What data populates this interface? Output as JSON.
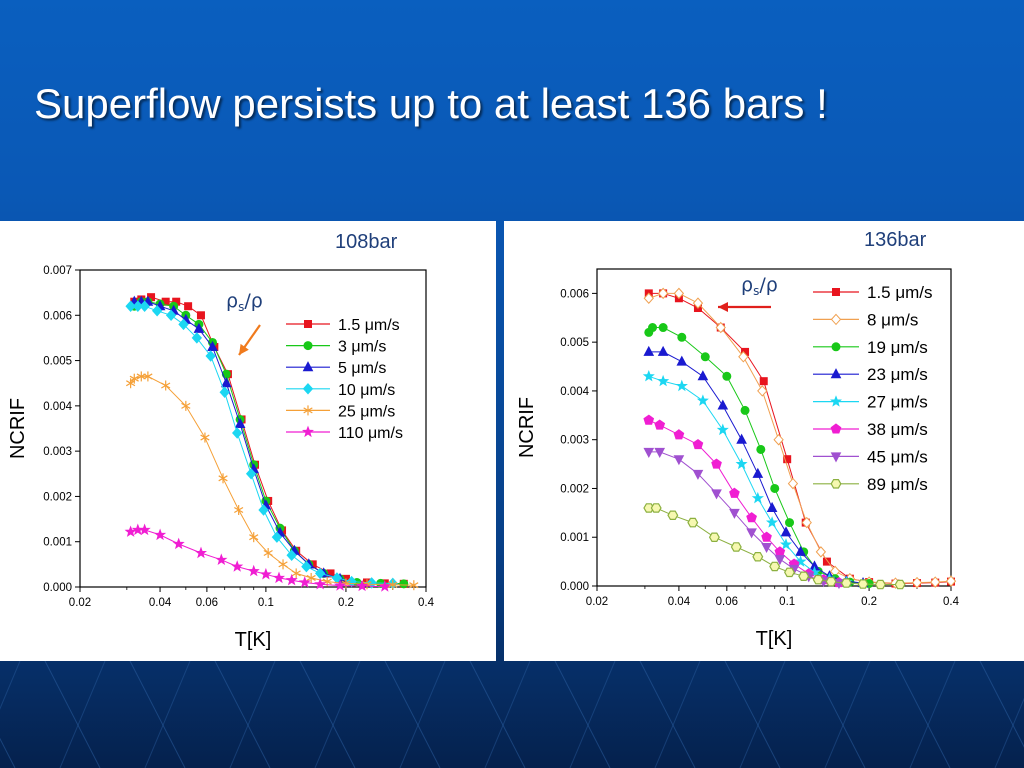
{
  "slide": {
    "title": "Superflow persists up to at least 136 bars !"
  },
  "colors": {
    "arrow_left": "#f07a1c",
    "arrow_right": "#e0201c"
  },
  "chart_data": [
    {
      "type": "scatter",
      "pressure_label": "108bar",
      "annotation": {
        "rho": "ρ",
        "sub": "s",
        "tail": "/ρ"
      },
      "xlabel": "T[K]",
      "ylabel": "NCRIF",
      "x_scale": "log",
      "xlim": [
        0.02,
        0.4
      ],
      "ylim": [
        0,
        0.007
      ],
      "x_ticks": [
        0.02,
        0.04,
        0.06,
        0.1,
        0.2,
        0.4
      ],
      "x_tick_labels": [
        "0.02",
        "0.04",
        "0.06",
        "0.1",
        "0.2",
        "0.4"
      ],
      "y_ticks": [
        0,
        0.001,
        0.002,
        0.003,
        0.004,
        0.005,
        0.006,
        0.007
      ],
      "y_tick_labels": [
        "0.000",
        "0.001",
        "0.002",
        "0.003",
        "0.004",
        "0.005",
        "0.006",
        "0.007"
      ],
      "legend": "top-right",
      "series": [
        {
          "name": "1.5 μm/s",
          "color": "#e8141e",
          "marker": "square",
          "filled": true,
          "x": [
            0.032,
            0.034,
            0.037,
            0.042,
            0.046,
            0.051,
            0.057,
            0.064,
            0.072,
            0.081,
            0.091,
            0.102,
            0.115,
            0.13,
            0.15,
            0.175,
            0.2,
            0.24,
            0.28,
            0.33
          ],
          "y": [
            0.0063,
            0.00635,
            0.0064,
            0.0063,
            0.0063,
            0.0062,
            0.006,
            0.0053,
            0.0047,
            0.0037,
            0.0027,
            0.0019,
            0.00125,
            0.0008,
            0.0005,
            0.0003,
            0.00018,
            0.0001,
            8e-05,
            7e-05
          ]
        },
        {
          "name": "3 μm/s",
          "color": "#18c818",
          "marker": "circle",
          "filled": true,
          "x": [
            0.032,
            0.034,
            0.036,
            0.04,
            0.045,
            0.05,
            0.056,
            0.063,
            0.071,
            0.08,
            0.09,
            0.1,
            0.113,
            0.128,
            0.145,
            0.165,
            0.19,
            0.22,
            0.27,
            0.33
          ],
          "y": [
            0.0062,
            0.0063,
            0.0063,
            0.00625,
            0.0062,
            0.006,
            0.0058,
            0.0054,
            0.0047,
            0.0037,
            0.0027,
            0.0019,
            0.0013,
            0.0008,
            0.0005,
            0.0003,
            0.00018,
            0.0001,
            8e-05,
            7e-05
          ]
        },
        {
          "name": "5 μm/s",
          "color": "#1a1ad0",
          "marker": "triangle-up",
          "filled": true,
          "x": [
            0.032,
            0.034,
            0.036,
            0.04,
            0.045,
            0.05,
            0.056,
            0.063,
            0.071,
            0.08,
            0.09,
            0.1,
            0.113,
            0.128,
            0.145,
            0.165,
            0.19
          ],
          "y": [
            0.0063,
            0.0063,
            0.0063,
            0.0062,
            0.0061,
            0.0059,
            0.0057,
            0.0053,
            0.0045,
            0.0036,
            0.0026,
            0.0018,
            0.0012,
            0.0008,
            0.0005,
            0.0003,
            0.00018
          ]
        },
        {
          "name": "10 μm/s",
          "color": "#1cd7f2",
          "marker": "diamond",
          "filled": true,
          "x": [
            0.031,
            0.033,
            0.035,
            0.039,
            0.044,
            0.049,
            0.055,
            0.062,
            0.07,
            0.078,
            0.088,
            0.098,
            0.11,
            0.125,
            0.142,
            0.16,
            0.185,
            0.21,
            0.25,
            0.3
          ],
          "y": [
            0.0062,
            0.0062,
            0.0062,
            0.0061,
            0.006,
            0.0058,
            0.0055,
            0.0051,
            0.0043,
            0.0034,
            0.0025,
            0.0017,
            0.0011,
            0.0007,
            0.00045,
            0.0003,
            0.0002,
            0.00012,
            9e-05,
            8e-05
          ]
        },
        {
          "name": "25 μm/s",
          "color": "#f5a037",
          "marker": "asterisk",
          "filled": false,
          "x": [
            0.031,
            0.032,
            0.034,
            0.036,
            0.042,
            0.05,
            0.059,
            0.069,
            0.079,
            0.09,
            0.102,
            0.116,
            0.13,
            0.148,
            0.17,
            0.2,
            0.24,
            0.3,
            0.36
          ],
          "y": [
            0.0045,
            0.0046,
            0.00465,
            0.00465,
            0.00445,
            0.004,
            0.0033,
            0.0024,
            0.0017,
            0.0011,
            0.00075,
            0.0005,
            0.0003,
            0.0002,
            0.00012,
            8e-05,
            6e-05,
            5e-05,
            4e-05
          ]
        },
        {
          "name": "110 μm/s",
          "color": "#f01ed2",
          "marker": "star",
          "filled": true,
          "x": [
            0.031,
            0.033,
            0.035,
            0.04,
            0.047,
            0.057,
            0.068,
            0.078,
            0.09,
            0.1,
            0.112,
            0.125,
            0.14,
            0.16,
            0.19,
            0.23,
            0.28
          ],
          "y": [
            0.00122,
            0.00126,
            0.00126,
            0.00115,
            0.00095,
            0.00075,
            0.0006,
            0.00045,
            0.00035,
            0.00028,
            0.0002,
            0.00015,
            0.0001,
            6e-05,
            3e-05,
            2e-05,
            1e-05
          ]
        }
      ]
    },
    {
      "type": "scatter",
      "pressure_label": "136bar",
      "annotation": {
        "rho": "ρ",
        "sub": "s",
        "tail": "/ρ"
      },
      "xlabel": "T[K]",
      "ylabel": "NCRIF",
      "x_scale": "log",
      "xlim": [
        0.02,
        0.4
      ],
      "ylim": [
        0,
        0.0065
      ],
      "x_ticks": [
        0.02,
        0.04,
        0.06,
        0.1,
        0.2,
        0.4
      ],
      "x_tick_labels": [
        "0.02",
        "0.04",
        "0.06",
        "0.1",
        "0.2",
        "0.4"
      ],
      "y_ticks": [
        0,
        0.001,
        0.002,
        0.003,
        0.004,
        0.005,
        0.006
      ],
      "y_tick_labels": [
        "0.000",
        "0.001",
        "0.002",
        "0.003",
        "0.004",
        "0.005",
        "0.006"
      ],
      "legend": "top-right",
      "series": [
        {
          "name": "1.5 μm/s",
          "color": "#e8141e",
          "marker": "square",
          "filled": true,
          "x": [
            0.031,
            0.035,
            0.04,
            0.047,
            0.057,
            0.07,
            0.082,
            0.1,
            0.117,
            0.14,
            0.17,
            0.2,
            0.25,
            0.3,
            0.35,
            0.4
          ],
          "y": [
            0.006,
            0.006,
            0.0059,
            0.0057,
            0.0053,
            0.0048,
            0.0042,
            0.0026,
            0.0013,
            0.0005,
            0.00015,
            8e-05,
            5e-05,
            6e-05,
            7e-05,
            9e-05
          ]
        },
        {
          "name": "8 μm/s",
          "color": "#f0a050",
          "marker": "diamond",
          "filled": false,
          "x": [
            0.031,
            0.035,
            0.04,
            0.047,
            0.057,
            0.069,
            0.081,
            0.093,
            0.105,
            0.118,
            0.133,
            0.15,
            0.17,
            0.2,
            0.25,
            0.3,
            0.35,
            0.4
          ],
          "y": [
            0.0059,
            0.006,
            0.006,
            0.0058,
            0.0053,
            0.0047,
            0.004,
            0.003,
            0.0021,
            0.0013,
            0.0007,
            0.0003,
            0.00015,
            8e-05,
            6e-05,
            7e-05,
            8e-05,
            0.0001
          ]
        },
        {
          "name": "19 μm/s",
          "color": "#18c818",
          "marker": "circle",
          "filled": true,
          "x": [
            0.031,
            0.032,
            0.035,
            0.041,
            0.05,
            0.06,
            0.07,
            0.08,
            0.09,
            0.102,
            0.115,
            0.13,
            0.15,
            0.17,
            0.2
          ],
          "y": [
            0.0052,
            0.0053,
            0.0053,
            0.0051,
            0.0047,
            0.0043,
            0.0036,
            0.0028,
            0.002,
            0.0013,
            0.0007,
            0.0003,
            0.00015,
            8e-05,
            5e-05
          ]
        },
        {
          "name": "23 μm/s",
          "color": "#1a1ad0",
          "marker": "triangle-up",
          "filled": true,
          "x": [
            0.031,
            0.035,
            0.041,
            0.049,
            0.058,
            0.068,
            0.078,
            0.088,
            0.099,
            0.112,
            0.126,
            0.143,
            0.165,
            0.19
          ],
          "y": [
            0.0048,
            0.0048,
            0.0046,
            0.0043,
            0.0037,
            0.003,
            0.0023,
            0.0016,
            0.0011,
            0.0007,
            0.0004,
            0.0002,
            0.0001,
            6e-05
          ]
        },
        {
          "name": "27 μm/s",
          "color": "#1cd7f2",
          "marker": "star",
          "filled": true,
          "x": [
            0.031,
            0.035,
            0.041,
            0.049,
            0.058,
            0.068,
            0.078,
            0.088,
            0.099,
            0.112,
            0.126,
            0.143,
            0.165
          ],
          "y": [
            0.0043,
            0.0042,
            0.0041,
            0.0038,
            0.0032,
            0.0025,
            0.0018,
            0.0013,
            0.00085,
            0.0005,
            0.00028,
            0.00015,
            8e-05
          ]
        },
        {
          "name": "38 μm/s",
          "color": "#f01ed2",
          "marker": "pentagon",
          "filled": true,
          "x": [
            0.031,
            0.034,
            0.04,
            0.047,
            0.055,
            0.064,
            0.074,
            0.084,
            0.094,
            0.106,
            0.12,
            0.136,
            0.155
          ],
          "y": [
            0.0034,
            0.0033,
            0.0031,
            0.0029,
            0.0025,
            0.0019,
            0.0014,
            0.001,
            0.0007,
            0.00045,
            0.00025,
            0.00013,
            7e-05
          ]
        },
        {
          "name": "45 μm/s",
          "color": "#a050d0",
          "marker": "triangle-down",
          "filled": true,
          "x": [
            0.031,
            0.034,
            0.04,
            0.047,
            0.055,
            0.064,
            0.074,
            0.084,
            0.094,
            0.106,
            0.12,
            0.136,
            0.155
          ],
          "y": [
            0.00275,
            0.00275,
            0.0026,
            0.0023,
            0.0019,
            0.0015,
            0.0011,
            0.0008,
            0.00055,
            0.00035,
            0.0002,
            0.0001,
            6e-05
          ]
        },
        {
          "name": "89 μm/s",
          "color": "#8cb040",
          "marker": "hexagon",
          "filled": false,
          "fill": "#f6f8b0",
          "x": [
            0.031,
            0.033,
            0.038,
            0.045,
            0.054,
            0.065,
            0.078,
            0.09,
            0.102,
            0.115,
            0.13,
            0.145,
            0.165,
            0.19,
            0.22,
            0.26
          ],
          "y": [
            0.0016,
            0.0016,
            0.00145,
            0.0013,
            0.001,
            0.0008,
            0.0006,
            0.0004,
            0.00028,
            0.0002,
            0.00013,
            9e-05,
            6e-05,
            4e-05,
            3e-05,
            3e-05
          ]
        }
      ]
    }
  ]
}
